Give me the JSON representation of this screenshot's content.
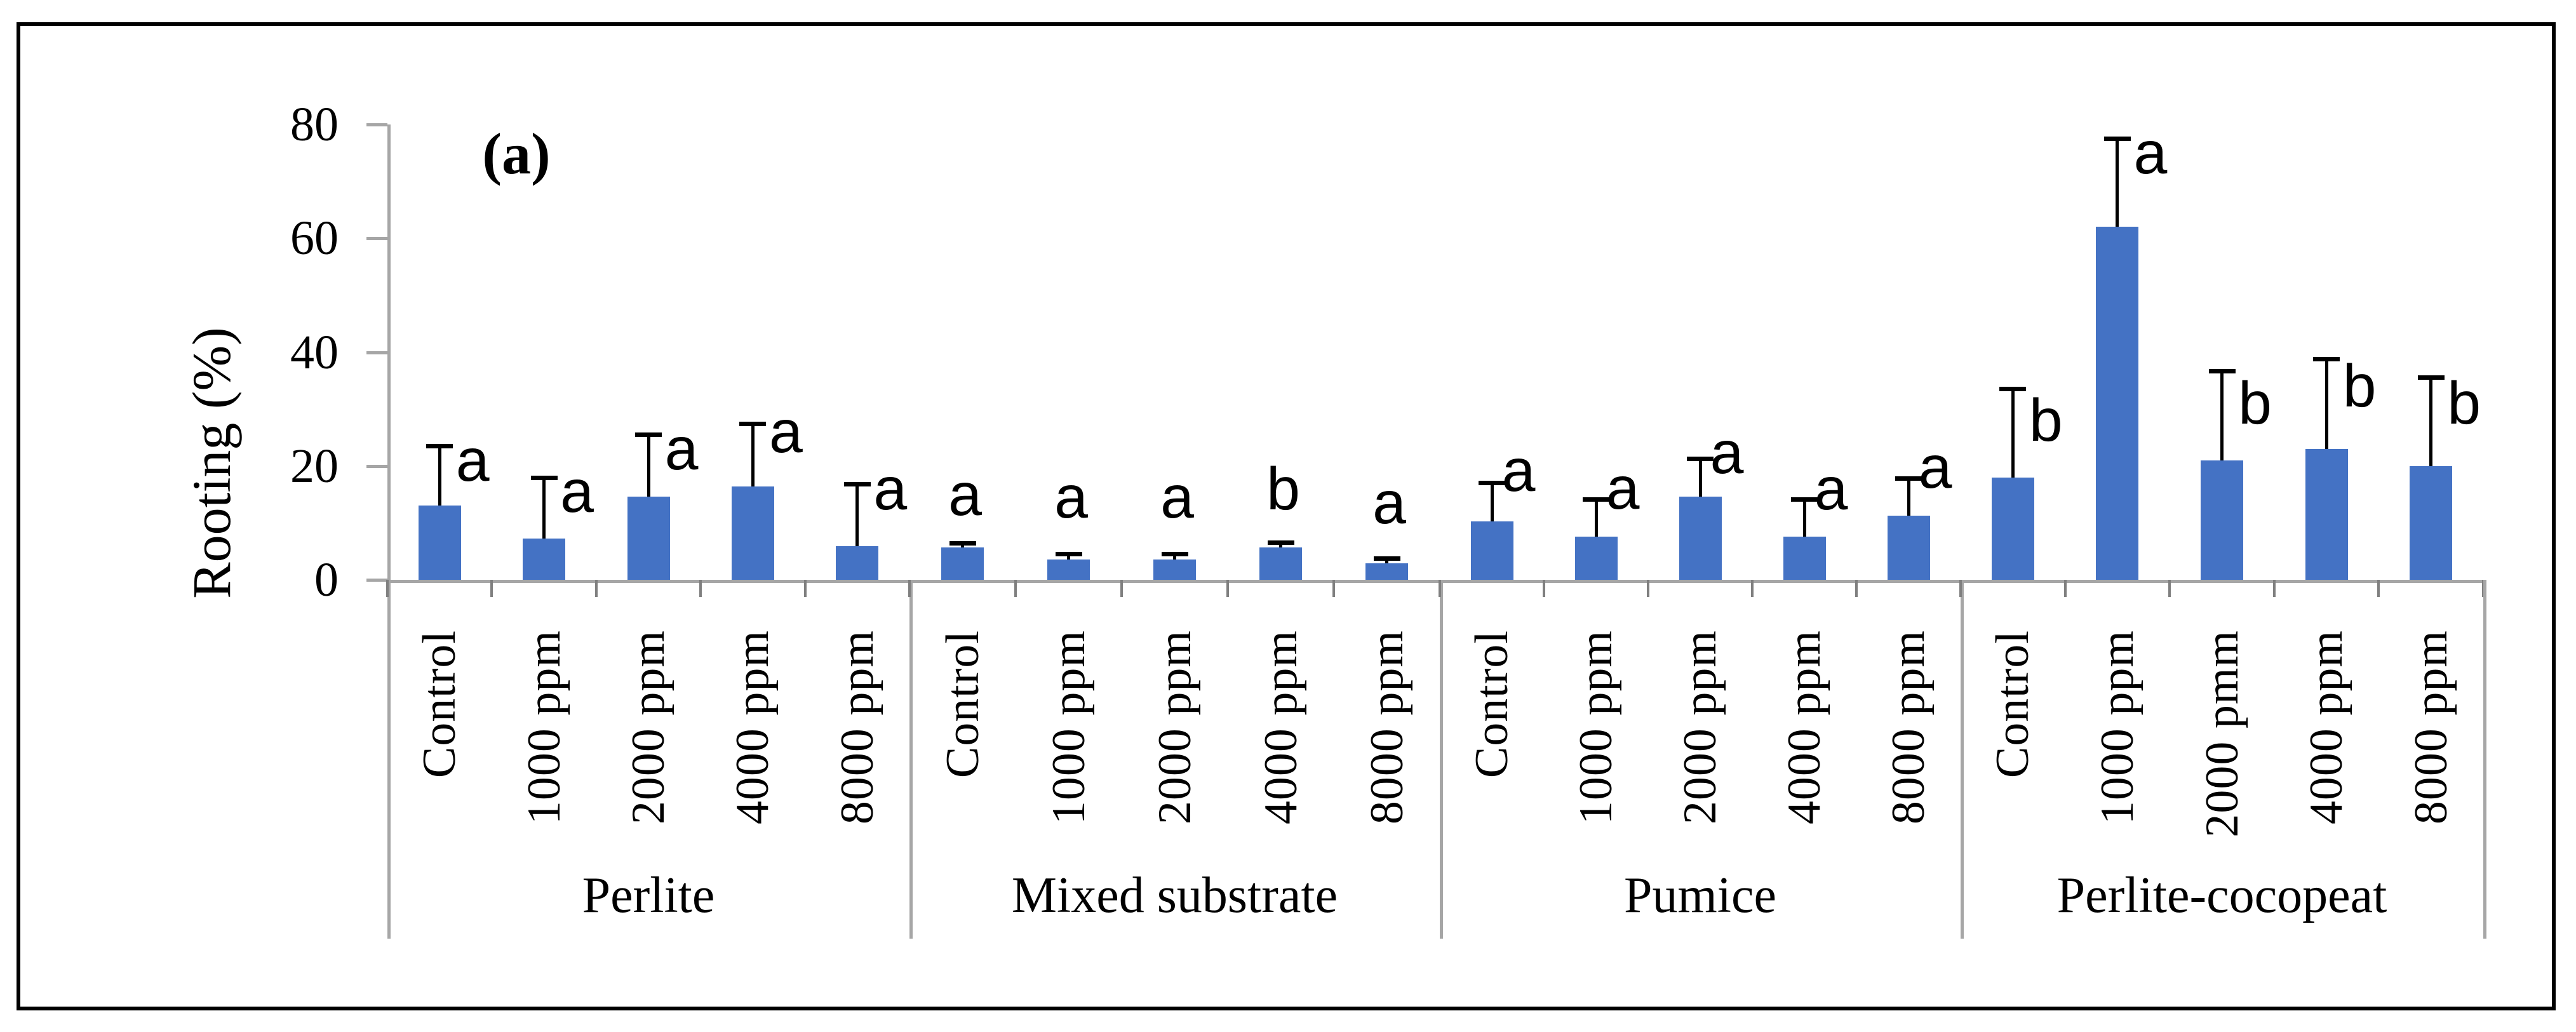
{
  "figure": {
    "panel_label": "(a)",
    "y_axis": {
      "title": "Rooting (%)",
      "tick_labels": [
        "80",
        "60",
        "40",
        "20",
        "0"
      ]
    },
    "colors": {
      "bar": "#4472C4",
      "axis_gray": "#A6A6A6",
      "error_bar": "#000000",
      "frame": "#000000"
    },
    "chart_data": {
      "type": "bar",
      "title": "",
      "xlabel": "",
      "ylabel": "Rooting (%)",
      "ylim": [
        0,
        80
      ],
      "y_ticks": [
        0,
        20,
        40,
        60,
        80
      ],
      "grid": false,
      "legend": false,
      "panel": "(a)",
      "group_labels": [
        "Perlite",
        "Mixed substrate",
        "Pumice",
        "Perlite-cocopeat"
      ],
      "groups": [
        {
          "label": "Perlite",
          "categories": [
            "Control",
            "1000 ppm",
            "2000 ppm",
            "4000 ppm",
            "8000 ppm"
          ],
          "values": [
            13,
            7.3,
            14.6,
            16.4,
            5.9
          ],
          "error_top": [
            23.5,
            18,
            25.5,
            27.5,
            16.8
          ],
          "sig_letters": [
            "a",
            "a",
            "a",
            "a",
            "a"
          ],
          "letter_y": [
            21,
            15.5,
            23,
            26,
            16
          ],
          "letter_dx": 52
        },
        {
          "label": "Mixed substrate",
          "categories": [
            "Control",
            "1000 ppm",
            "2000 ppm",
            "4000 ppm",
            "8000 ppm"
          ],
          "values": [
            5.7,
            3.6,
            3.6,
            5.7,
            2.9
          ],
          "error_top": [
            6.5,
            4.6,
            4.6,
            6.6,
            3.8
          ],
          "sig_letters": [
            "a",
            "a",
            "a",
            "b",
            "a"
          ],
          "letter_y": [
            15,
            14.5,
            14.5,
            16,
            13.5
          ],
          "letter_dx": 4
        },
        {
          "label": "Pumice",
          "categories": [
            "Control",
            "1000 ppm",
            "2000 ppm",
            "4000 ppm",
            "8000 ppm"
          ],
          "values": [
            10.3,
            7.6,
            14.6,
            7.6,
            11.3
          ],
          "error_top": [
            17.1,
            14.2,
            21.3,
            14.2,
            17.9
          ],
          "sig_letters": [
            "a",
            "a",
            "a",
            "a",
            "a"
          ],
          "letter_y": [
            19.2,
            16.1,
            22.3,
            15.9,
            19.7
          ],
          "letter_dx": 42
        },
        {
          "label": "Perlite-cocopeat",
          "categories": [
            "Control",
            "1000 ppm",
            "2000 pmm",
            "4000 ppm",
            "8000 ppm"
          ],
          "values": [
            18,
            62,
            21,
            23,
            20
          ],
          "error_top": [
            33.6,
            77.5,
            36.7,
            38.8,
            35.6
          ],
          "sig_letters": [
            "b",
            "a",
            "b",
            "b",
            "b"
          ],
          "letter_y": [
            28,
            75,
            31,
            34,
            31
          ],
          "letter_dx": 52
        }
      ]
    }
  }
}
